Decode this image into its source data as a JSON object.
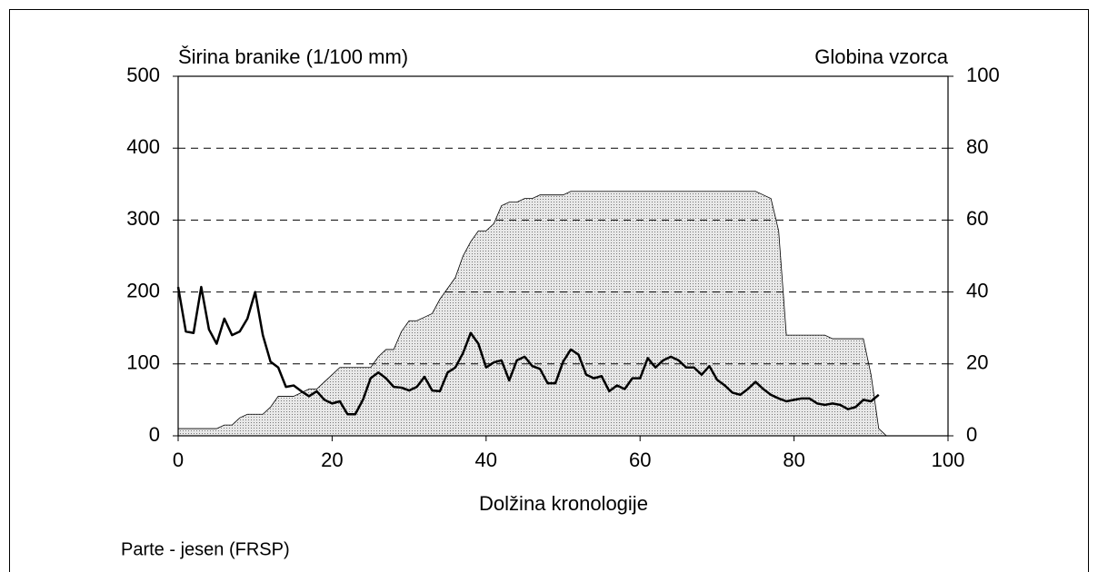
{
  "chart_data": {
    "type": "line-area",
    "y_label": "Širina branike (1/100 mm)",
    "y2_label": "Globina vzorca",
    "x_label": "Dolžina kronologije",
    "caption": "Parte - jesen (FRSP)",
    "xlim": [
      0,
      100
    ],
    "xticks": [
      0,
      20,
      40,
      60,
      80,
      100
    ],
    "ylim": [
      0,
      500
    ],
    "yticks": [
      0,
      100,
      200,
      300,
      400,
      500
    ],
    "y2lim": [
      0,
      100
    ],
    "y2ticks": [
      0,
      20,
      40,
      60,
      80,
      100
    ],
    "grid": true,
    "series": [
      {
        "kind": "line",
        "color": "#000000",
        "x": [
          0,
          1,
          2,
          3,
          4,
          5,
          6,
          7,
          8,
          9,
          10,
          11,
          12,
          13,
          14,
          15,
          16,
          17,
          18,
          19,
          20,
          21,
          22,
          23,
          24,
          25,
          26,
          27,
          28,
          29,
          30,
          31,
          32,
          33,
          34,
          35,
          36,
          37,
          38,
          39,
          40,
          41,
          42,
          43,
          44,
          45,
          46,
          47,
          48,
          49,
          50,
          51,
          52,
          53,
          54,
          55,
          56,
          57,
          58,
          59,
          60,
          61,
          62,
          63,
          64,
          65,
          66,
          67,
          68,
          69,
          70,
          71,
          72,
          73,
          74,
          75,
          76,
          77,
          78,
          79,
          80,
          81,
          82,
          83,
          84,
          85,
          86,
          87,
          88,
          89,
          90,
          91
        ],
        "values": [
          207,
          145,
          143,
          207,
          148,
          128,
          163,
          140,
          145,
          163,
          200,
          140,
          103,
          95,
          68,
          70,
          62,
          55,
          62,
          50,
          45,
          48,
          30,
          30,
          50,
          80,
          88,
          80,
          68,
          67,
          63,
          68,
          82,
          63,
          62,
          88,
          95,
          115,
          143,
          128,
          95,
          102,
          105,
          77,
          105,
          110,
          97,
          93,
          73,
          73,
          103,
          120,
          113,
          85,
          80,
          83,
          62,
          70,
          65,
          80,
          80,
          108,
          95,
          105,
          110,
          105,
          95,
          95,
          85,
          97,
          78,
          70,
          60,
          57,
          65,
          75,
          65,
          57,
          52,
          48,
          50,
          52,
          52,
          45,
          43,
          45,
          43,
          37,
          40,
          50,
          48,
          57
        ]
      },
      {
        "kind": "area",
        "axis": "y2",
        "color": "#c8c8c8",
        "x": [
          0,
          1,
          2,
          3,
          4,
          5,
          6,
          7,
          8,
          9,
          10,
          11,
          12,
          13,
          14,
          15,
          16,
          17,
          18,
          19,
          20,
          21,
          22,
          23,
          24,
          25,
          26,
          27,
          28,
          29,
          30,
          31,
          32,
          33,
          34,
          35,
          36,
          37,
          38,
          39,
          40,
          41,
          42,
          43,
          44,
          45,
          46,
          47,
          48,
          49,
          50,
          51,
          52,
          53,
          54,
          55,
          56,
          57,
          58,
          59,
          60,
          61,
          62,
          63,
          64,
          65,
          66,
          67,
          68,
          69,
          70,
          71,
          72,
          73,
          74,
          75,
          76,
          77,
          78,
          79,
          80,
          81,
          82,
          83,
          84,
          85,
          86,
          87,
          88,
          89,
          90,
          91,
          92
        ],
        "values": [
          2,
          2,
          2,
          2,
          2,
          2,
          3,
          3,
          5,
          6,
          6,
          6,
          8,
          11,
          11,
          11,
          12,
          13,
          13,
          15,
          17,
          19,
          19,
          19,
          19,
          19,
          22,
          24,
          24,
          29,
          32,
          32,
          33,
          34,
          38,
          41,
          44,
          50,
          54,
          57,
          57,
          59,
          64,
          65,
          65,
          66,
          66,
          67,
          67,
          67,
          67,
          68,
          68,
          68,
          68,
          68,
          68,
          68,
          68,
          68,
          68,
          68,
          68,
          68,
          68,
          68,
          68,
          68,
          68,
          68,
          68,
          68,
          68,
          68,
          68,
          68,
          67,
          66,
          57,
          28,
          28,
          28,
          28,
          28,
          28,
          27,
          27,
          27,
          27,
          27,
          17,
          2,
          0
        ]
      }
    ]
  }
}
